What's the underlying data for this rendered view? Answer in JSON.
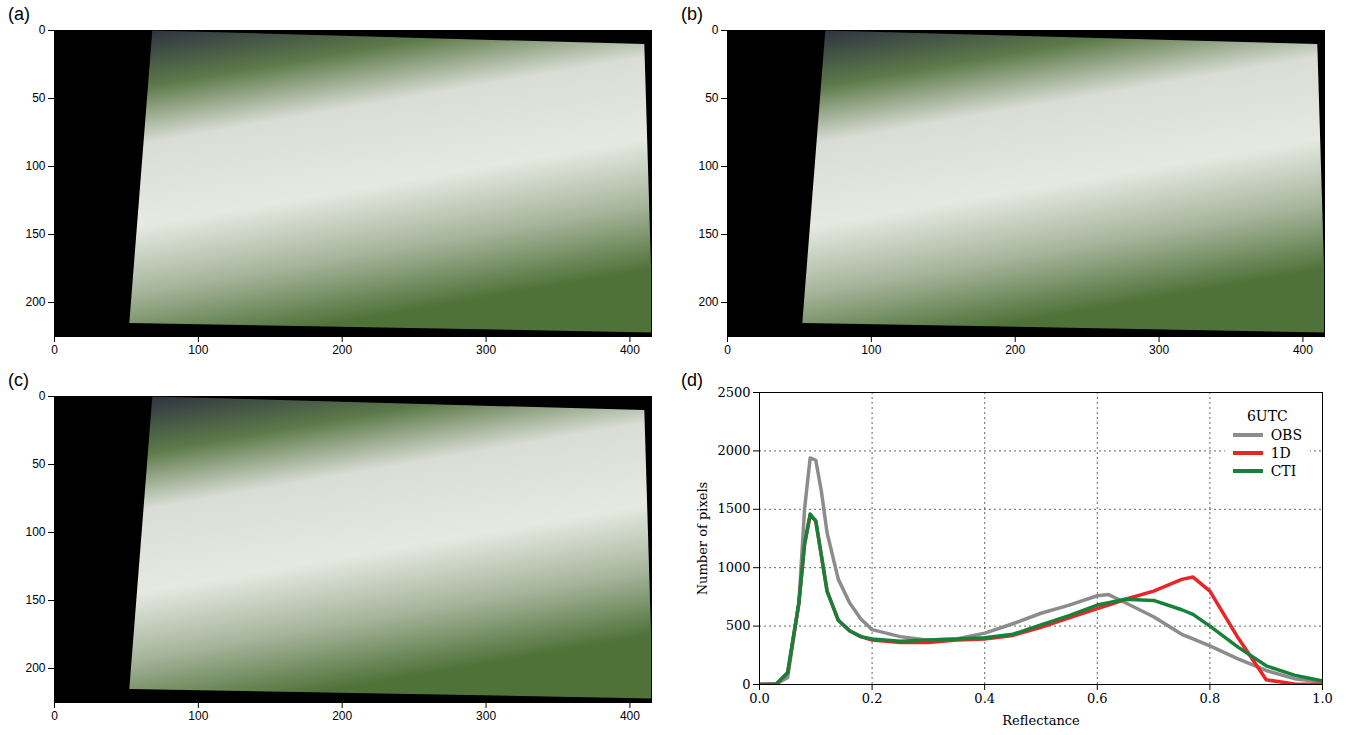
{
  "chart_data": [
    {
      "type": "image",
      "panel_label": "(a)",
      "xlim": [
        0,
        415
      ],
      "ylim": [
        225,
        0
      ],
      "xticks": [
        0,
        100,
        200,
        300,
        400
      ],
      "yticks": [
        0,
        50,
        100,
        150,
        200
      ],
      "swath": {
        "x": [
          68,
          410,
          416,
          52
        ],
        "y": [
          0,
          10,
          222,
          215
        ]
      }
    },
    {
      "type": "image",
      "panel_label": "(b)",
      "xlim": [
        0,
        415
      ],
      "ylim": [
        225,
        0
      ],
      "xticks": [
        0,
        100,
        200,
        300,
        400
      ],
      "yticks": [
        0,
        50,
        100,
        150,
        200
      ],
      "swath": {
        "x": [
          68,
          410,
          416,
          52
        ],
        "y": [
          0,
          10,
          222,
          215
        ]
      }
    },
    {
      "type": "image",
      "panel_label": "(c)",
      "xlim": [
        0,
        415
      ],
      "ylim": [
        225,
        0
      ],
      "xticks": [
        0,
        100,
        200,
        300,
        400
      ],
      "yticks": [
        0,
        50,
        100,
        150,
        200
      ],
      "swath": {
        "x": [
          68,
          410,
          416,
          52
        ],
        "y": [
          0,
          10,
          222,
          215
        ]
      }
    },
    {
      "type": "line",
      "panel_label": "(d)",
      "x_label": "Reflectance",
      "y_label": "Number of pixels",
      "legend_title": "6UTC",
      "legend": "upper right",
      "grid": true,
      "xlim": [
        0,
        1
      ],
      "ylim": [
        0,
        2500
      ],
      "xticks": [
        {
          "value": 0,
          "label": "0.0"
        },
        {
          "value": 0.2,
          "label": "0.2"
        },
        {
          "value": 0.4,
          "label": "0.4"
        },
        {
          "value": 0.6,
          "label": "0.6"
        },
        {
          "value": 0.8,
          "label": "0.8"
        },
        {
          "value": 1,
          "label": "1.0"
        }
      ],
      "yticks": [
        0,
        500,
        1000,
        1500,
        2000,
        2500
      ],
      "x": [
        0,
        0.03,
        0.05,
        0.07,
        0.08,
        0.09,
        0.1,
        0.11,
        0.12,
        0.14,
        0.16,
        0.18,
        0.2,
        0.25,
        0.3,
        0.35,
        0.4,
        0.45,
        0.5,
        0.55,
        0.6,
        0.62,
        0.65,
        0.7,
        0.75,
        0.77,
        0.8,
        0.85,
        0.9,
        0.95,
        1
      ],
      "series": [
        {
          "name": "OBS",
          "color": "#8c8c8c",
          "values": [
            0,
            5,
            60,
            700,
            1500,
            1940,
            1920,
            1650,
            1300,
            900,
            700,
            560,
            470,
            410,
            380,
            390,
            440,
            520,
            610,
            680,
            760,
            770,
            700,
            580,
            430,
            390,
            330,
            220,
            120,
            50,
            20
          ]
        },
        {
          "name": "1D",
          "color": "#e8262a",
          "values": [
            0,
            5,
            100,
            700,
            1200,
            1450,
            1400,
            1100,
            800,
            550,
            460,
            410,
            380,
            360,
            360,
            380,
            390,
            420,
            490,
            570,
            650,
            680,
            730,
            800,
            900,
            920,
            800,
            400,
            40,
            5,
            0
          ]
        },
        {
          "name": "CTI",
          "color": "#17813a",
          "values": [
            0,
            5,
            100,
            700,
            1200,
            1460,
            1400,
            1100,
            800,
            550,
            460,
            410,
            390,
            370,
            380,
            390,
            400,
            430,
            510,
            590,
            680,
            700,
            730,
            720,
            640,
            600,
            500,
            320,
            160,
            80,
            30
          ]
        }
      ]
    }
  ]
}
